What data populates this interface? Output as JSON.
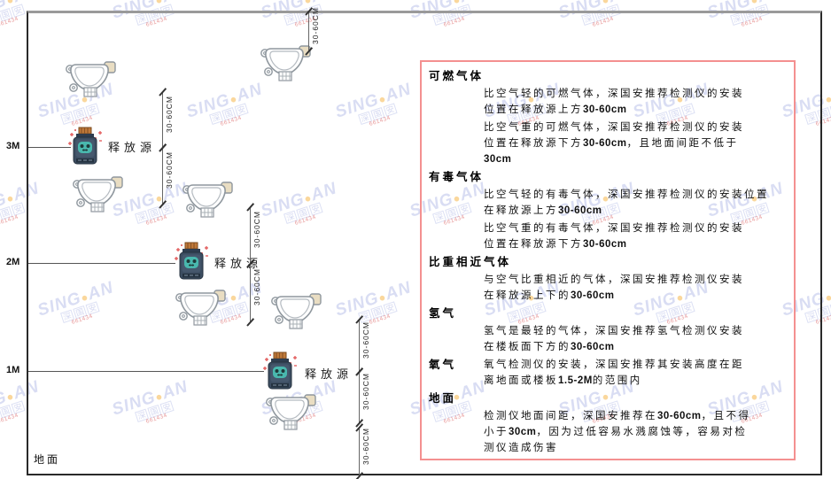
{
  "watermark": {
    "brand_left": "SING",
    "dot": "●",
    "brand_right": "AN",
    "cjk_chars": [
      "深",
      "国",
      "安"
    ],
    "red_text": "661434"
  },
  "diagram": {
    "axis_labels": [
      "3M",
      "2M",
      "1M"
    ],
    "ground_label": "地面",
    "source_label": "释放源",
    "dim_label": "30-60CM"
  },
  "info_panel": {
    "sections": [
      {
        "heading": "可燃气体",
        "inline": false,
        "paragraphs": [
          [
            "比空气轻的可燃气体，深国安推荐检测仪的安装",
            "位置在释放源上方30-60cm"
          ],
          [
            "比空气重的可燃气体，深国安推荐检测仪的安装",
            "位置在释放源下方30-60cm，且地面间距不低于",
            "30cm"
          ]
        ]
      },
      {
        "heading": "有毒气体",
        "inline": false,
        "paragraphs": [
          [
            "比空气轻的有毒气体，深国安推荐检测仪的安装位置",
            "在释放源上方30-60cm"
          ],
          [
            "比空气重的有毒气体，深国安推荐检测仪的安装",
            "位置在释放源下方30-60cm"
          ]
        ]
      },
      {
        "heading": "比重相近气体",
        "inline": false,
        "paragraphs": [
          [
            "与空气比重相近的气体，深国安推荐检测仪安装",
            "在释放源上下的30-60cm"
          ]
        ]
      },
      {
        "heading": "氢气",
        "inline": false,
        "paragraphs": [
          [
            "氢气是最轻的气体，深国安推荐氢气检测仪安装",
            "在楼板面下方的30-60cm"
          ]
        ]
      },
      {
        "heading": "氧气",
        "inline": true,
        "paragraphs": [
          [
            "氧气检测仪的安装，深国安推荐其安装高度在距",
            "离地面或楼板1.5-2M的范围内"
          ]
        ]
      },
      {
        "heading": "地面",
        "inline": false,
        "paragraphs": [
          [
            "检测仪地面间距，深国安推荐在30-60cm，且不得",
            "小于30cm，因为过低容易水溅腐蚀等，容易对检",
            "测仪造成伤害"
          ]
        ]
      }
    ]
  },
  "colors": {
    "panel_border": "#f49090",
    "frame_border": "#2a2a2a",
    "dim_line": "#666666",
    "watermark_blue": "#808ed6",
    "watermark_orange": "#f5a623",
    "source_body": "#3c4d61",
    "source_cork": "#c07a3a",
    "source_face": "#49b8ae",
    "sparkle_red": "#e05050",
    "detector_outline": "#8f979e"
  }
}
